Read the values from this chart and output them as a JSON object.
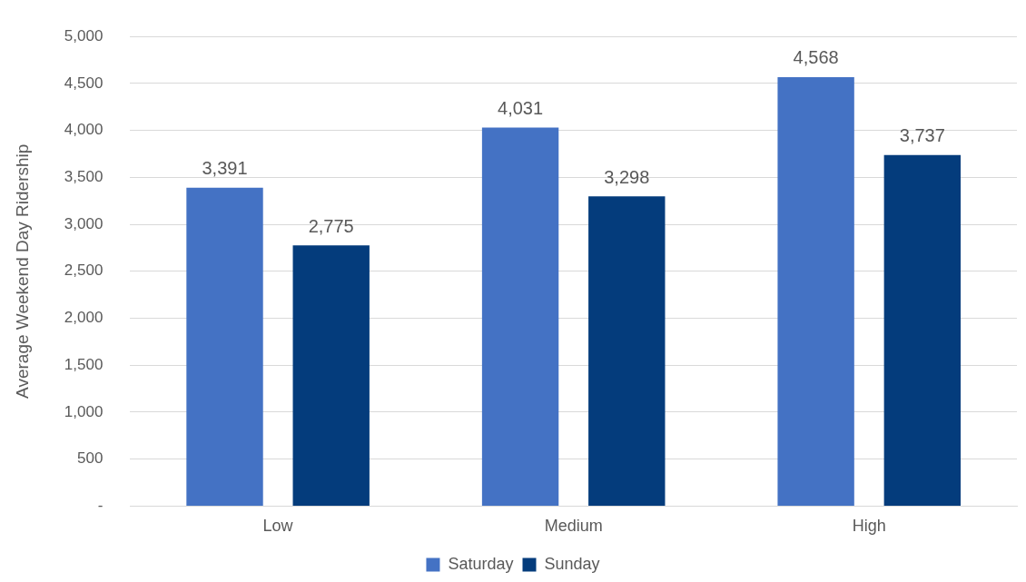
{
  "chart_data": {
    "type": "bar",
    "ylabel": "Average Weekend Day Ridership",
    "categories": [
      "Low",
      "Medium",
      "High"
    ],
    "series": [
      {
        "name": "Saturday",
        "color": "#4472c4",
        "values": [
          3391,
          4031,
          4568
        ],
        "value_labels": [
          "3,391",
          "4,031",
          "4,568"
        ]
      },
      {
        "name": "Sunday",
        "color": "#043c7c",
        "values": [
          2775,
          3298,
          3737
        ],
        "value_labels": [
          "2,775",
          "3,298",
          "3,737"
        ]
      }
    ],
    "ylim": [
      0,
      5000
    ],
    "yticks": [
      {
        "value": 0,
        "label": "-"
      },
      {
        "value": 500,
        "label": "500"
      },
      {
        "value": 1000,
        "label": "1,000"
      },
      {
        "value": 1500,
        "label": "1,500"
      },
      {
        "value": 2000,
        "label": "2,000"
      },
      {
        "value": 2500,
        "label": "2,500"
      },
      {
        "value": 3000,
        "label": "3,000"
      },
      {
        "value": 3500,
        "label": "3,500"
      },
      {
        "value": 4000,
        "label": "4,000"
      },
      {
        "value": 4500,
        "label": "4,500"
      },
      {
        "value": 5000,
        "label": "5,000"
      }
    ],
    "grid": "y",
    "legend": "bottom"
  }
}
